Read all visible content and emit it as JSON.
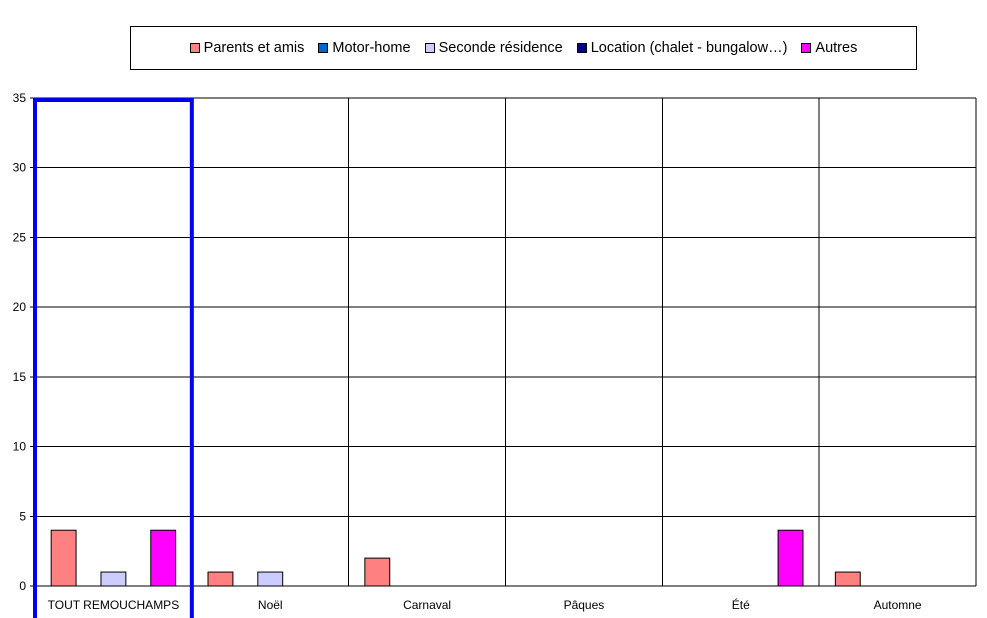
{
  "chart_data": {
    "type": "bar",
    "title": "",
    "xlabel": "",
    "ylabel": "",
    "ylim": [
      0,
      35
    ],
    "yticks": [
      0,
      5,
      10,
      15,
      20,
      25,
      30,
      35
    ],
    "grid": true,
    "legend_position": "top",
    "categories": [
      "TOUT REMOUCHAMPS",
      "Noël",
      "Carnaval",
      "Pâques",
      "Été",
      "Automne"
    ],
    "highlighted_category": "TOUT REMOUCHAMPS",
    "highlight_color": "#0000ee",
    "series": [
      {
        "name": "Parents et amis",
        "color": "#ff8080",
        "values": [
          4,
          1,
          2,
          0,
          0,
          1
        ]
      },
      {
        "name": "Motor-home",
        "color": "#0066cc",
        "values": [
          0,
          0,
          0,
          0,
          0,
          0
        ]
      },
      {
        "name": "Seconde résidence",
        "color": "#ccccff",
        "values": [
          1,
          1,
          0,
          0,
          0,
          0
        ]
      },
      {
        "name": "Location (chalet - bungalow…)",
        "color": "#000080",
        "values": [
          0,
          0,
          0,
          0,
          0,
          0
        ]
      },
      {
        "name": "Autres",
        "color": "#ff00ff",
        "values": [
          4,
          0,
          0,
          0,
          4,
          0
        ]
      }
    ]
  }
}
